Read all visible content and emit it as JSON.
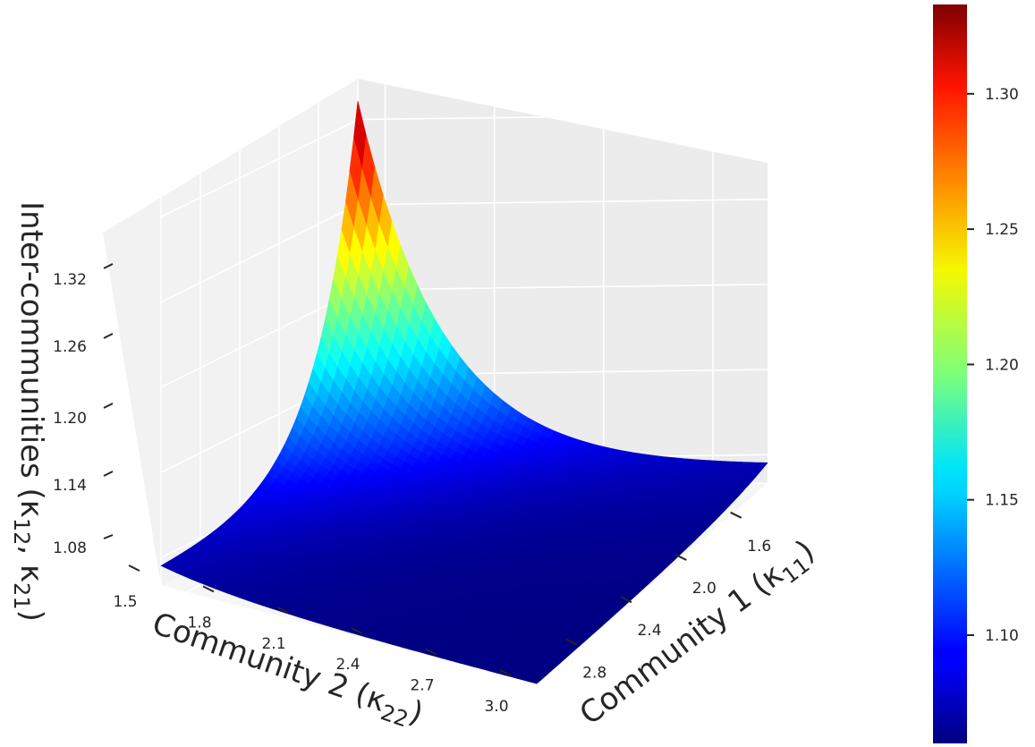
{
  "chart_data": {
    "type": "surface3d",
    "colormap": "jet",
    "x_axis": {
      "label": "Community 1 (κ",
      "label_sub": "11",
      "label_close": ")",
      "ticks": [
        "1.6",
        "2.0",
        "2.4",
        "2.8"
      ],
      "range": [
        1.5,
        3.0
      ]
    },
    "y_axis": {
      "label": "Community 2 (κ",
      "label_sub": "22",
      "label_close": ")",
      "ticks": [
        "1.5",
        "1.8",
        "2.1",
        "2.4",
        "2.7",
        "3.0"
      ],
      "range": [
        1.5,
        3.0
      ]
    },
    "z_axis": {
      "label": "Inter-communities (κ",
      "label_sub1": "12",
      "label_mid": ", κ",
      "label_sub2": "21",
      "label_close": ")",
      "ticks": [
        "1.08",
        "1.14",
        "1.20",
        "1.26",
        "1.32"
      ],
      "range": [
        1.06,
        1.333
      ]
    },
    "surface": {
      "corners": {
        "k11_1.5_k22_1.5": 1.333,
        "k11_3.0_k22_1.5": 1.07,
        "k11_1.5_k22_3.0": 1.07,
        "k11_3.0_k22_3.0": 1.06
      }
    },
    "colorbar": {
      "range": [
        1.06,
        1.333
      ],
      "ticks": [
        "1.10",
        "1.15",
        "1.20",
        "1.25",
        "1.30"
      ]
    },
    "grid": true
  }
}
